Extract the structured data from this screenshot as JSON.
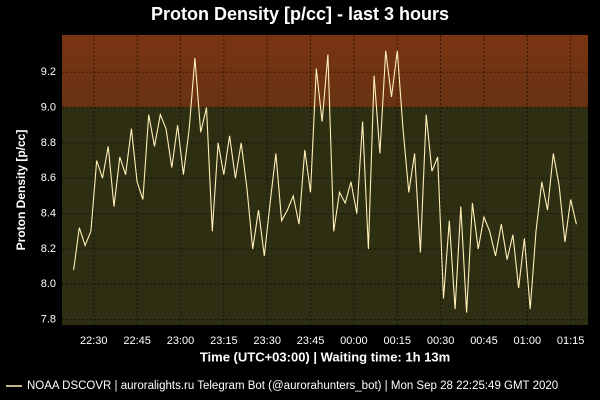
{
  "chart_data": {
    "type": "line",
    "title": "Proton Density [p/cc] - last 3 hours",
    "xlabel": "Time (UTC+03:00) | Waiting time: 1h 13m",
    "ylabel": "Proton Density [p/cc]",
    "xlim": [
      "22:19",
      "01:21"
    ],
    "xticks": [
      "22:30",
      "22:45",
      "23:00",
      "23:15",
      "23:30",
      "23:45",
      "00:00",
      "00:15",
      "00:30",
      "00:45",
      "01:00",
      "01:15"
    ],
    "ylim": [
      7.77,
      9.41
    ],
    "yticks": [
      7.8,
      {
        "value": 8,
        "label": "8.0"
      },
      8.2,
      8.4,
      8.6,
      8.8,
      {
        "value": 9,
        "label": "9.0"
      },
      9.2
    ],
    "grid": true,
    "threshold": 9,
    "background_color": "#2e2e12",
    "threshold_color": "#7a3412",
    "legend": "bottom",
    "x": [
      "22:23",
      "22:25",
      "22:27",
      "22:29",
      "22:31",
      "22:33",
      "22:35",
      "22:37",
      "22:39",
      "22:41",
      "22:43",
      "22:45",
      "22:47",
      "22:49",
      "22:51",
      "22:53",
      "22:55",
      "22:57",
      "22:59",
      "23:01",
      "23:03",
      "23:05",
      "23:07",
      "23:09",
      "23:11",
      "23:13",
      "23:15",
      "23:17",
      "23:19",
      "23:21",
      "23:23",
      "23:25",
      "23:27",
      "23:29",
      "23:31",
      "23:33",
      "23:35",
      "23:37",
      "23:39",
      "23:41",
      "23:43",
      "23:45",
      "23:47",
      "23:49",
      "23:51",
      "23:53",
      "23:55",
      "23:57",
      "23:59",
      "00:01",
      "00:03",
      "00:05",
      "00:07",
      "00:09",
      "00:11",
      "00:13",
      "00:15",
      "00:17",
      "00:19",
      "00:21",
      "00:23",
      "00:25",
      "00:27",
      "00:29",
      "00:31",
      "00:33",
      "00:35",
      "00:37",
      "00:39",
      "00:41",
      "00:43",
      "00:45",
      "00:47",
      "00:49",
      "00:51",
      "00:53",
      "00:55",
      "00:57",
      "00:59",
      "01:01",
      "01:03",
      "01:05",
      "01:07",
      "01:09",
      "01:11",
      "01:13",
      "01:15",
      "01:17"
    ],
    "series": [
      {
        "name": "NOAA DSCOVR | auroralights.ru Telegram Bot (@aurorahunters_bot) | Mon Sep 28 22:25:49 GMT 2020",
        "color": "#fff0b8",
        "values": [
          8.08,
          8.32,
          8.22,
          8.3,
          8.7,
          8.6,
          8.78,
          8.44,
          8.72,
          8.62,
          8.88,
          8.58,
          8.48,
          8.96,
          8.78,
          8.96,
          8.88,
          8.66,
          8.9,
          8.62,
          8.88,
          9.28,
          8.86,
          9.0,
          8.3,
          8.8,
          8.62,
          8.84,
          8.6,
          8.8,
          8.54,
          8.2,
          8.42,
          8.16,
          8.46,
          8.74,
          8.36,
          8.42,
          8.5,
          8.34,
          8.76,
          8.52,
          9.22,
          8.92,
          9.3,
          8.3,
          8.52,
          8.46,
          8.58,
          8.4,
          8.92,
          8.2,
          9.18,
          8.74,
          9.32,
          9.06,
          9.32,
          8.88,
          8.52,
          8.74,
          8.18,
          8.96,
          8.64,
          8.72,
          7.92,
          8.36,
          7.86,
          8.44,
          7.84,
          8.46,
          8.2,
          8.38,
          8.3,
          8.16,
          8.34,
          8.14,
          8.28,
          7.98,
          8.26,
          7.86,
          8.3,
          8.58,
          8.42,
          8.74,
          8.56,
          8.24,
          8.48,
          8.34
        ]
      }
    ]
  }
}
